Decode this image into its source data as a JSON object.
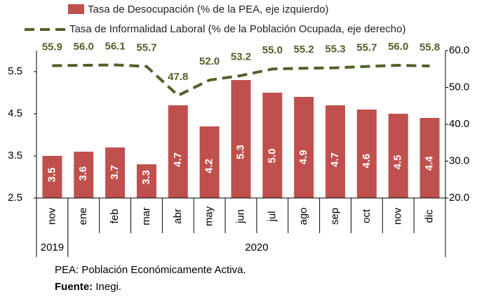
{
  "chart_data": {
    "type": "bar_line",
    "categories": [
      "nov",
      "ene",
      "feb",
      "mar",
      "abr",
      "may",
      "jun",
      "jul",
      "ago",
      "sep",
      "oct",
      "nov",
      "dic"
    ],
    "groups": [
      {
        "label": "2019",
        "span": 1
      },
      {
        "label": "2020",
        "span": 12
      }
    ],
    "series": [
      {
        "name": "Tasa de Desocupación (% de la PEA, eje izquierdo)",
        "type": "bar",
        "color": "#c0504d",
        "values": [
          3.5,
          3.6,
          3.7,
          3.3,
          4.7,
          4.2,
          5.3,
          5.0,
          4.9,
          4.7,
          4.6,
          4.5,
          4.4
        ],
        "value_labels": [
          "3.5",
          "3.6",
          "3.7",
          "3.3",
          "4.7",
          "4.2",
          "5.3",
          "5.0",
          "4.9",
          "4.7",
          "4.6",
          "4.5",
          "4.4"
        ]
      },
      {
        "name": "Tasa de Informalidad Laboral (% de la Población Ocupada, eje derecho)",
        "type": "line",
        "axis": "y2",
        "color": "#4f6228",
        "dashed": true,
        "values": [
          55.9,
          56.0,
          56.1,
          55.7,
          47.8,
          52.0,
          53.2,
          55.0,
          55.2,
          55.3,
          55.7,
          56.0,
          55.8
        ],
        "value_labels": [
          "55.9",
          "56.0",
          "56.1",
          "55.7",
          "47.8",
          "52.0",
          "53.2",
          "55.0",
          "55.2",
          "55.3",
          "55.7",
          "56.0",
          "55.8"
        ]
      }
    ],
    "ylim": [
      2.5,
      6.0
    ],
    "yticks": [
      2.5,
      3.5,
      4.5,
      5.5
    ],
    "y2lim": [
      20,
      60
    ],
    "y2ticks": [
      {
        "value": 20,
        "label": "20.0"
      },
      {
        "value": 30,
        "label": "30.0"
      },
      {
        "value": 40,
        "label": "40.0"
      },
      {
        "value": 50,
        "label": "50.0"
      },
      {
        "value": 60,
        "label": "60.0"
      }
    ],
    "notes": [
      "PEA: Población Económicamente Activa."
    ],
    "source_label": "Fuente:",
    "source": "Inegi."
  }
}
